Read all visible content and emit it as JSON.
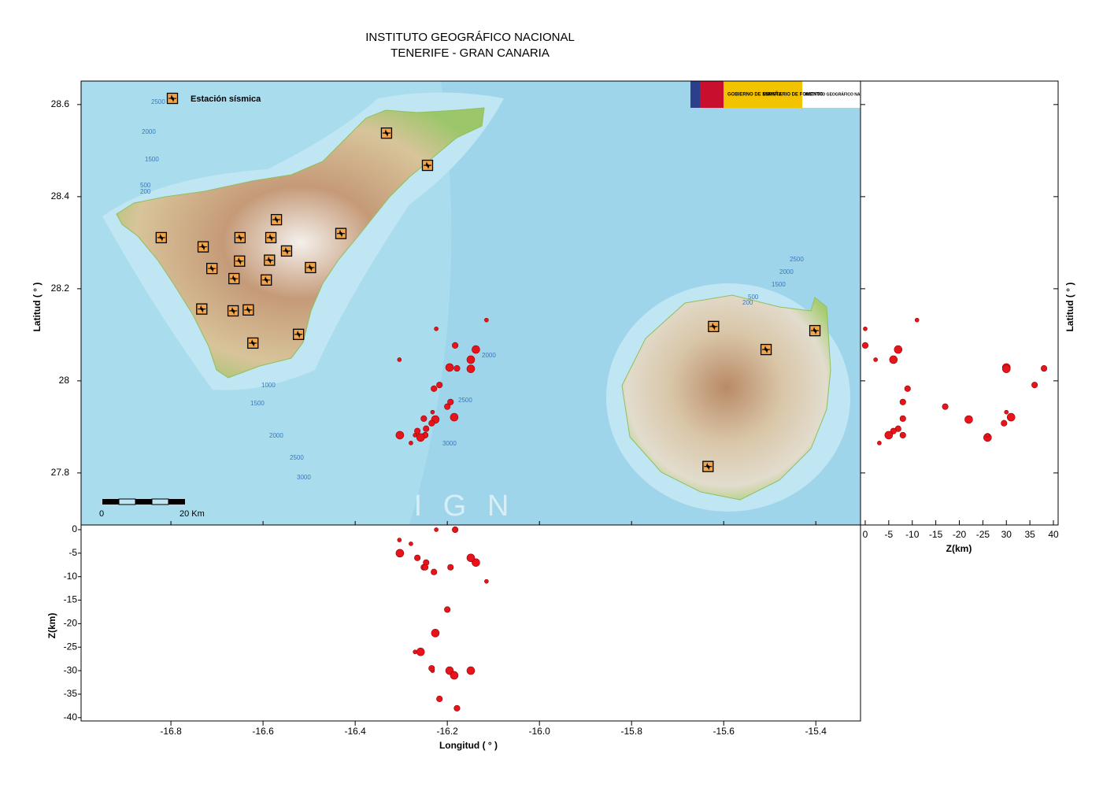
{
  "header": {
    "title": "INSTITUTO GEOGRÁFICO NACIONAL",
    "subtitle": "TENERIFE - GRAN CANARIA"
  },
  "map": {
    "xlim": [
      -16.995,
      -15.303
    ],
    "ylim": [
      27.687,
      28.651
    ],
    "xticks": [
      -16.8,
      -16.6,
      -16.4,
      -16.2,
      {
        "value": -16,
        "label": "-16.0"
      },
      -15.8,
      -15.6,
      -15.4
    ],
    "yticks": [
      28.6,
      28.4,
      28.2,
      28,
      27.8
    ],
    "x_label": "Longitud ( ° )",
    "y_label": "Latitud ( ° )",
    "legend_label": "Estación sísmica",
    "scale_labels": [
      "0",
      "20 Km"
    ],
    "watermark": "I G N",
    "logo_texts": [
      "GOBIERNO DE ESPAÑA",
      "MINISTERIO DE FOMENTO",
      "INSTITUTO GEOGRÁFICO NACIONAL"
    ],
    "contour_labels": [
      "2500",
      "2000",
      "1500",
      "500",
      "200",
      "1000",
      "1500",
      "2000",
      "2500",
      "3000",
      "2000",
      "2500",
      "3000",
      "2500",
      "2000",
      "1500",
      "500",
      "200"
    ],
    "station_color": "#f2a54a",
    "stations": {
      "lon": [
        -16.821,
        -16.73,
        -16.711,
        -16.65,
        -16.651,
        -16.663,
        -16.583,
        -16.571,
        -16.549,
        -16.586,
        -16.593,
        -16.497,
        -16.431,
        -16.332,
        -16.243,
        -16.733,
        -16.665,
        -16.632,
        -16.622,
        -16.523,
        -15.622,
        -15.508,
        -15.402,
        -15.634
      ],
      "lat": [
        28.311,
        28.291,
        28.244,
        28.311,
        28.26,
        28.222,
        28.311,
        28.35,
        28.282,
        28.262,
        28.219,
        28.246,
        28.32,
        28.538,
        28.468,
        28.156,
        28.152,
        28.154,
        28.082,
        28.101,
        28.118,
        28.068,
        28.109,
        27.814
      ]
    }
  },
  "events": {
    "color": "#e8141c",
    "lon": [
      -16.115,
      -16.224,
      -16.183,
      -16.138,
      -16.149,
      -16.304,
      -16.195,
      -16.179,
      -16.149,
      -16.217,
      -16.229,
      -16.193,
      -16.2,
      -16.232,
      -16.185,
      -16.251,
      -16.226,
      -16.234,
      -16.246,
      -16.265,
      -16.303,
      -16.248,
      -16.258,
      -16.27,
      -16.279
    ],
    "lat": [
      28.132,
      28.113,
      28.077,
      28.068,
      28.046,
      28.046,
      28.029,
      28.027,
      28.026,
      27.991,
      27.983,
      27.954,
      27.944,
      27.932,
      27.921,
      27.918,
      27.916,
      27.908,
      27.896,
      27.891,
      27.882,
      27.882,
      27.877,
      27.882,
      27.865
    ],
    "depth": [
      -11,
      0,
      0,
      -7,
      -6,
      -2.2,
      -30,
      -38,
      -30,
      -36,
      -9,
      -8,
      -17,
      -30,
      -31,
      -8,
      -22,
      -29.5,
      -7,
      -6,
      -5,
      -8,
      -26,
      -26,
      -3
    ],
    "size": [
      1,
      1,
      1.5,
      2,
      2,
      1,
      2,
      1.5,
      2,
      1.5,
      1.5,
      1.5,
      1.5,
      1,
      2,
      1.5,
      2,
      1.5,
      1.5,
      1.5,
      2,
      1.5,
      2,
      1,
      1
    ]
  },
  "depth_lon_panel": {
    "ylim": [
      -40.7,
      1
    ],
    "yticks": [
      0,
      -5,
      -10,
      -15,
      -20,
      -25,
      -30,
      -35,
      -40
    ],
    "y_label": "Z(km)"
  },
  "depth_lat_panel": {
    "xlim": [
      1,
      -41
    ],
    "xticks": [
      0,
      -5,
      -10,
      -15,
      -20,
      -25,
      {
        "value": -30,
        "label": "30"
      },
      {
        "value": -35,
        "label": "35"
      },
      {
        "value": -40,
        "label": "40"
      }
    ],
    "x_label": "Z(km)",
    "y_label": "Latitud ( ° )"
  }
}
